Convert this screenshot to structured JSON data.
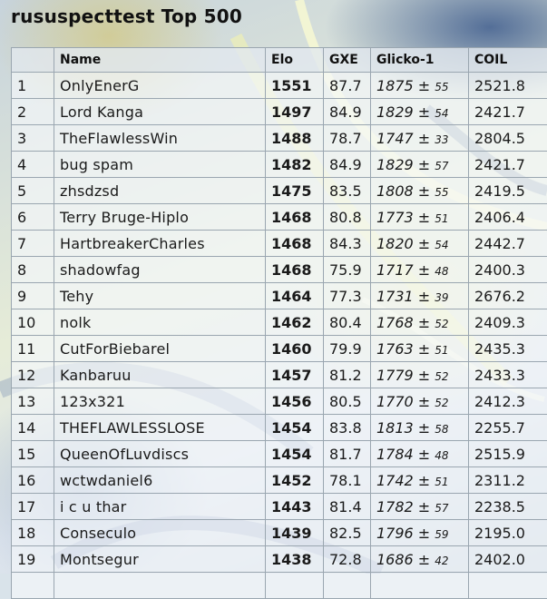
{
  "page": {
    "title": "rususpecttest Top 500"
  },
  "table": {
    "columns": [
      "",
      "Name",
      "Elo",
      "GXE",
      "Glicko-1",
      "COIL"
    ],
    "rows": [
      {
        "rank": "1",
        "name": "OnlyEnerG",
        "elo": "1551",
        "gxe": "87.7",
        "glicko": "1875",
        "deviation": "55",
        "coil": "2521.8"
      },
      {
        "rank": "2",
        "name": "Lord Kanga",
        "elo": "1497",
        "gxe": "84.9",
        "glicko": "1829",
        "deviation": "54",
        "coil": "2421.7"
      },
      {
        "rank": "3",
        "name": "TheFlawlessWin",
        "elo": "1488",
        "gxe": "78.7",
        "glicko": "1747",
        "deviation": "33",
        "coil": "2804.5"
      },
      {
        "rank": "4",
        "name": "bug spam",
        "elo": "1482",
        "gxe": "84.9",
        "glicko": "1829",
        "deviation": "57",
        "coil": "2421.7"
      },
      {
        "rank": "5",
        "name": "zhsdzsd",
        "elo": "1475",
        "gxe": "83.5",
        "glicko": "1808",
        "deviation": "55",
        "coil": "2419.5"
      },
      {
        "rank": "6",
        "name": "Terry Bruge-Hiplo",
        "elo": "1468",
        "gxe": "80.8",
        "glicko": "1773",
        "deviation": "51",
        "coil": "2406.4"
      },
      {
        "rank": "7",
        "name": "HartbreakerCharles",
        "elo": "1468",
        "gxe": "84.3",
        "glicko": "1820",
        "deviation": "54",
        "coil": "2442.7"
      },
      {
        "rank": "8",
        "name": "shadowfag",
        "elo": "1468",
        "gxe": "75.9",
        "glicko": "1717",
        "deviation": "48",
        "coil": "2400.3"
      },
      {
        "rank": "9",
        "name": "Tehy",
        "elo": "1464",
        "gxe": "77.3",
        "glicko": "1731",
        "deviation": "39",
        "coil": "2676.2"
      },
      {
        "rank": "10",
        "name": "nolk",
        "elo": "1462",
        "gxe": "80.4",
        "glicko": "1768",
        "deviation": "52",
        "coil": "2409.3"
      },
      {
        "rank": "11",
        "name": "CutForBiebarel",
        "elo": "1460",
        "gxe": "79.9",
        "glicko": "1763",
        "deviation": "51",
        "coil": "2435.3"
      },
      {
        "rank": "12",
        "name": "Kanbaruu",
        "elo": "1457",
        "gxe": "81.2",
        "glicko": "1779",
        "deviation": "52",
        "coil": "2433.3"
      },
      {
        "rank": "13",
        "name": "123x321",
        "elo": "1456",
        "gxe": "80.5",
        "glicko": "1770",
        "deviation": "52",
        "coil": "2412.3"
      },
      {
        "rank": "14",
        "name": "THEFLAWLESSLOSE",
        "elo": "1454",
        "gxe": "83.8",
        "glicko": "1813",
        "deviation": "58",
        "coil": "2255.7"
      },
      {
        "rank": "15",
        "name": "QueenOfLuvdiscs",
        "elo": "1454",
        "gxe": "81.7",
        "glicko": "1784",
        "deviation": "48",
        "coil": "2515.9"
      },
      {
        "rank": "16",
        "name": "wctwdaniel6",
        "elo": "1452",
        "gxe": "78.1",
        "glicko": "1742",
        "deviation": "51",
        "coil": "2311.2"
      },
      {
        "rank": "17",
        "name": "i c u thar",
        "elo": "1443",
        "gxe": "81.4",
        "glicko": "1782",
        "deviation": "57",
        "coil": "2238.5"
      },
      {
        "rank": "18",
        "name": "Conseculo",
        "elo": "1439",
        "gxe": "82.5",
        "glicko": "1796",
        "deviation": "59",
        "coil": "2195.0"
      },
      {
        "rank": "19",
        "name": "Montsegur",
        "elo": "1438",
        "gxe": "72.8",
        "glicko": "1686",
        "deviation": "42",
        "coil": "2402.0"
      },
      {
        "rank": "",
        "name": "",
        "elo": "",
        "gxe": "",
        "glicko": "",
        "deviation": "",
        "coil": ""
      }
    ]
  }
}
